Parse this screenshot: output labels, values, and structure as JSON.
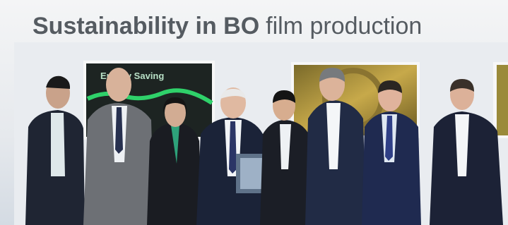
{
  "banner": {
    "title_bold": "Sustainability in BO",
    "title_regular": "film production"
  },
  "screen": {
    "label": "Energy Saving"
  }
}
